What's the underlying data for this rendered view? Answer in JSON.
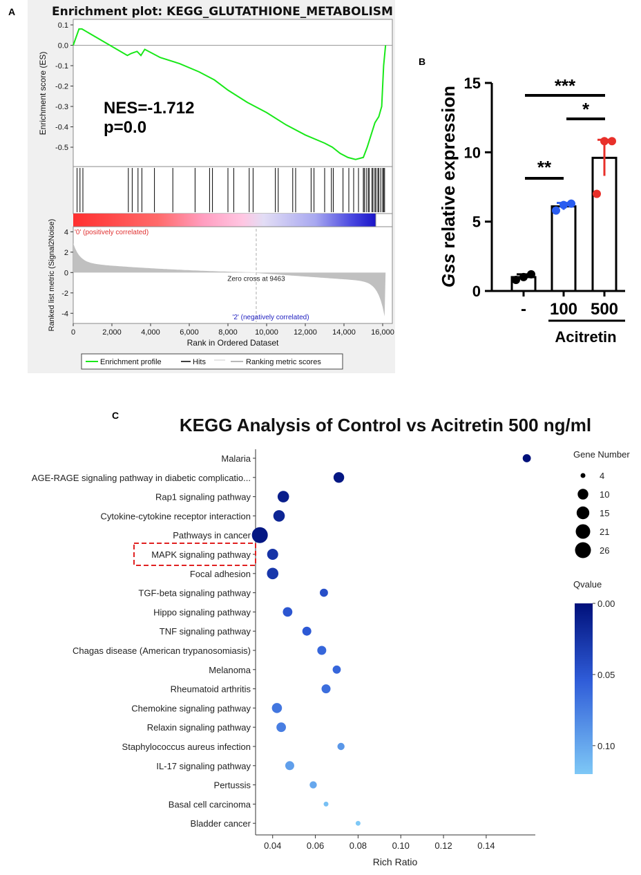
{
  "panels": {
    "a": "A",
    "b": "B",
    "c": "C"
  },
  "chart_data": [
    {
      "type": "line",
      "panel": "A",
      "title": "Enrichment plot: KEGG_GLUTATHIONE_METABOLISM",
      "ylabel": "Enrichment score (ES)",
      "ylim": [
        -0.6,
        0.1
      ],
      "yticks": [
        "0.1",
        "0.0",
        "-0.1",
        "-0.2",
        "-0.3",
        "-0.4",
        "-0.5"
      ],
      "x": [
        0,
        150,
        300,
        450,
        2800,
        3000,
        3300,
        3500,
        3700,
        4500,
        5500,
        6500,
        7300,
        8000,
        9000,
        10000,
        11000,
        12000,
        13000,
        13400,
        13800,
        14200,
        14600,
        15000,
        15200,
        15400,
        15600,
        15800,
        15950,
        16050,
        16100,
        16150
      ],
      "es": [
        0.0,
        0.04,
        0.08,
        0.08,
        -0.05,
        -0.04,
        -0.03,
        -0.05,
        -0.02,
        -0.06,
        -0.09,
        -0.13,
        -0.17,
        -0.22,
        -0.28,
        -0.33,
        -0.39,
        -0.44,
        -0.48,
        -0.5,
        -0.53,
        -0.55,
        -0.56,
        -0.55,
        -0.5,
        -0.44,
        -0.38,
        -0.35,
        -0.3,
        -0.1,
        -0.05,
        0.0
      ],
      "hits": [
        200,
        350,
        500,
        2850,
        3050,
        3350,
        3550,
        4200,
        5150,
        6300,
        7050,
        7200,
        8000,
        8300,
        9100,
        9300,
        10450,
        10600,
        11350,
        11500,
        12300,
        12450,
        13000,
        13350,
        13450,
        13950,
        14250,
        14500,
        14750,
        15000,
        15050,
        15150,
        15250,
        15300,
        15450,
        15500,
        15600,
        15650,
        15750,
        15800,
        15900,
        16000,
        16050,
        16100
      ],
      "annotation_nes": "NES=-1.712",
      "annotation_p": "p=0.0",
      "heat_label_pos": "'0' (positively correlated)",
      "heat_label_neg": "'2' (negatively correlated)",
      "metric_ylabel": "Ranked list metric (Signal2Noise)",
      "metric_yticks": [
        "4",
        "2",
        "0",
        "-2",
        "-4"
      ],
      "metric_ylim": [
        -5,
        4.5
      ],
      "zero_cross_label": "Zero cross at 9463",
      "zero_cross": 9463,
      "xlabel": "Rank in Ordered Dataset",
      "xlim": [
        0,
        16500
      ],
      "xticks": [
        "0",
        "2,000",
        "4,000",
        "6,000",
        "8,000",
        "10,000",
        "12,000",
        "14,000",
        "16,000"
      ],
      "xtick_values": [
        0,
        2000,
        4000,
        6000,
        8000,
        10000,
        12000,
        14000,
        16000
      ],
      "legend": [
        "Enrichment profile",
        "Hits",
        "Ranking metric scores"
      ],
      "colors": {
        "profile": "#18e818",
        "hits": "#000000",
        "metric": "#b8b8b8",
        "pos": "#ff3030",
        "neg": "#1a14c8"
      }
    },
    {
      "type": "bar",
      "panel": "B",
      "ylabel_italic": "Gss",
      "ylabel_rest": " relative expression",
      "categories": [
        "-",
        "100",
        "500"
      ],
      "values": [
        1.0,
        6.1,
        9.6
      ],
      "errors": [
        0.2,
        0.25,
        1.3
      ],
      "points": [
        [
          0.8,
          1.0,
          1.2
        ],
        [
          5.8,
          6.2,
          6.3
        ],
        [
          7.0,
          10.8,
          10.8
        ]
      ],
      "ylim": [
        0,
        15
      ],
      "yticks": [
        "0",
        "5",
        "10",
        "15"
      ],
      "xlabel": "Acitretin",
      "significance": [
        "***",
        "*",
        "**"
      ],
      "colors": [
        "#000000",
        "#2a5df0",
        "#e8302a"
      ]
    },
    {
      "type": "scatter",
      "panel": "C",
      "title": "KEGG Analysis of Control vs Acitretin 500 ng/ml",
      "xlabel": "Rich Ratio",
      "xlim": [
        0.032,
        0.163
      ],
      "xticks": [
        "0.04",
        "0.06",
        "0.08",
        "0.10",
        "0.12",
        "0.14"
      ],
      "xtick_values": [
        0.04,
        0.06,
        0.08,
        0.1,
        0.12,
        0.14
      ],
      "pathways": [
        "Malaria",
        "AGE-RAGE signaling pathway in diabetic complicatio...",
        "Rap1 signaling pathway",
        "Cytokine-cytokine receptor interaction",
        "Pathways in cancer",
        "MAPK signaling pathway",
        "Focal adhesion",
        "TGF-beta signaling pathway",
        "Hippo signaling pathway",
        "TNF signaling pathway",
        "Chagas disease (American trypanosomiasis)",
        "Melanoma",
        "Rheumatoid arthritis",
        "Chemokine signaling pathway",
        "Relaxin signaling pathway",
        "Staphylococcus aureus infection",
        "IL-17 signaling pathway",
        "Pertussis",
        "Basal cell carcinoma",
        "Bladder cancer"
      ],
      "rich_ratio": [
        0.159,
        0.071,
        0.045,
        0.043,
        0.034,
        0.04,
        0.04,
        0.064,
        0.047,
        0.056,
        0.063,
        0.07,
        0.065,
        0.042,
        0.044,
        0.072,
        0.048,
        0.059,
        0.065,
        0.08
      ],
      "gene_number": [
        6,
        10,
        12,
        12,
        26,
        11,
        12,
        6,
        8,
        7,
        7,
        6,
        7,
        9,
        8,
        5,
        7,
        5,
        4,
        4
      ],
      "qvalue": [
        0.0,
        0.005,
        0.01,
        0.015,
        0.005,
        0.025,
        0.028,
        0.045,
        0.05,
        0.052,
        0.06,
        0.06,
        0.065,
        0.07,
        0.075,
        0.09,
        0.095,
        0.1,
        0.115,
        0.12
      ],
      "highlighted": "MAPK signaling pathway",
      "size_legend_title": "Gene Number",
      "size_legend": [
        "4",
        "10",
        "15",
        "21",
        "26"
      ],
      "size_legend_values": [
        4,
        10,
        15,
        21,
        26
      ],
      "color_legend_title": "Qvalue",
      "color_legend_ticks": [
        "0.00",
        "0.05",
        "0.10"
      ],
      "color_legend_values": [
        0.0,
        0.05,
        0.1
      ],
      "qvalue_range": [
        0.0,
        0.12
      ],
      "colors": {
        "low": "#00107a",
        "high": "#7ec8f6"
      }
    }
  ]
}
